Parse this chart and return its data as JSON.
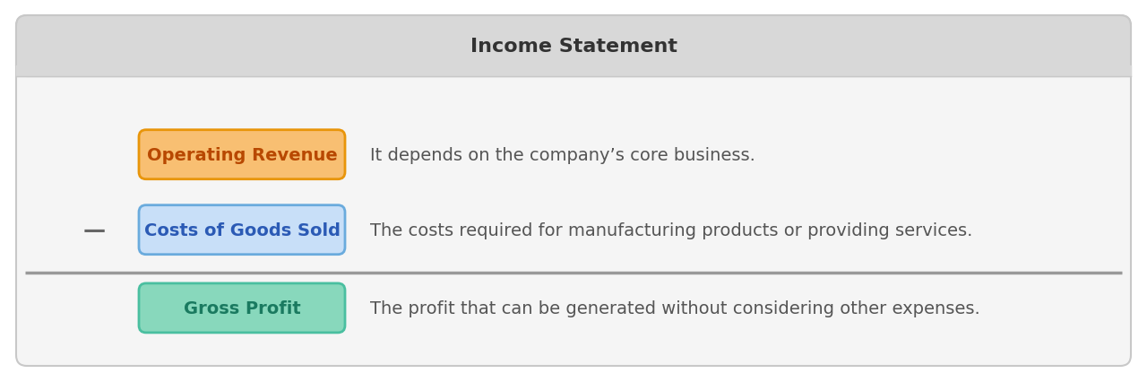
{
  "title": "Income Statement",
  "title_bg_color": "#d8d8d8",
  "body_bg_color": "#f5f5f5",
  "outer_bg_color": "#ffffff",
  "card_edge_color": "#c8c8c8",
  "rows": [
    {
      "label": "Operating Revenue",
      "label_text_color": "#b84800",
      "box_fill_color": "#f8bf72",
      "box_edge_color": "#e8950a",
      "description": "It depends on the company’s core business.",
      "prefix": "",
      "separator_below": false
    },
    {
      "label": "Costs of Goods Sold",
      "label_text_color": "#2b5ab5",
      "box_fill_color": "#c8dff8",
      "box_edge_color": "#6aabdd",
      "description": "The costs required for manufacturing products or providing services.",
      "prefix": "—",
      "separator_below": true
    },
    {
      "label": "Gross Profit",
      "label_text_color": "#1a7a60",
      "box_fill_color": "#88d8bc",
      "box_edge_color": "#4abfa0",
      "description": "The profit that can be generated without considering other expenses.",
      "prefix": "",
      "separator_below": false
    }
  ],
  "title_fontsize": 16,
  "label_fontsize": 14,
  "desc_fontsize": 14,
  "prefix_fontsize": 18
}
